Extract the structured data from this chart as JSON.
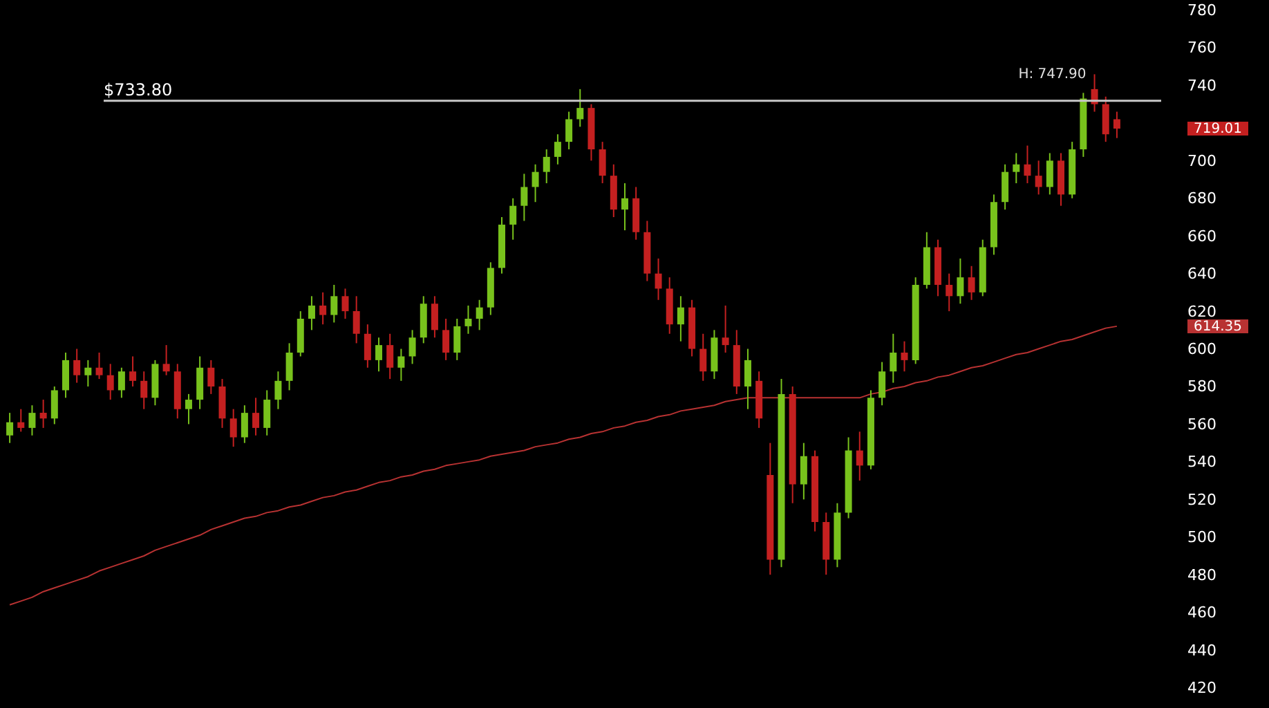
{
  "chart_data": {
    "type": "candlestick",
    "tick_labels": "y",
    "ylim": [
      420,
      780
    ],
    "yticks": [
      420,
      440,
      460,
      480,
      500,
      520,
      540,
      560,
      580,
      600,
      620,
      640,
      660,
      680,
      700,
      740,
      760,
      780
    ],
    "categories": [
      null,
      null,
      null,
      null,
      null,
      null,
      null,
      null,
      null,
      null,
      null,
      null,
      null,
      null,
      null,
      null,
      null,
      null,
      null,
      null,
      null,
      null,
      null,
      null,
      null,
      null,
      null,
      null,
      null,
      null,
      null,
      null,
      null,
      null,
      null,
      null,
      null,
      null,
      null,
      null,
      null,
      null,
      null,
      null,
      null,
      null,
      null,
      null,
      null,
      null,
      null,
      null,
      null,
      null,
      null,
      null,
      null,
      null,
      null,
      null,
      null,
      null,
      null,
      null,
      null,
      null,
      null,
      null,
      null,
      null,
      null,
      null,
      null,
      null,
      null,
      null,
      null,
      null,
      null,
      null,
      null,
      null,
      null,
      null,
      null,
      null,
      null,
      null,
      null,
      null,
      null,
      null,
      null,
      null,
      null,
      null,
      null,
      null,
      null,
      null
    ],
    "series": [
      {
        "type": "line",
        "color": "#b83232",
        "values": [
          466,
          468,
          470,
          473,
          475,
          477,
          479,
          481,
          484,
          486,
          488,
          490,
          492,
          495,
          497,
          499,
          501,
          503,
          506,
          508,
          510,
          512,
          513,
          515,
          516,
          518,
          519,
          521,
          523,
          524,
          526,
          527,
          529,
          531,
          532,
          534,
          535,
          537,
          538,
          540,
          541,
          542,
          543,
          545,
          546,
          547,
          548,
          550,
          551,
          552,
          554,
          555,
          557,
          558,
          560,
          561,
          563,
          564,
          566,
          567,
          569,
          570,
          571,
          572,
          574,
          575,
          576,
          576,
          576,
          576,
          576,
          576,
          576,
          576,
          576,
          576,
          576,
          578,
          579,
          581,
          582,
          584,
          585,
          587,
          588,
          590,
          592,
          593,
          595,
          597,
          599,
          600,
          602,
          604,
          606,
          607,
          609,
          611,
          613,
          614
        ]
      },
      {
        "type": "candlestick",
        "ohlc": [
          [
            556,
            568,
            552,
            563
          ],
          [
            563,
            570,
            558,
            560
          ],
          [
            560,
            572,
            556,
            568
          ],
          [
            568,
            575,
            560,
            565
          ],
          [
            565,
            582,
            562,
            580
          ],
          [
            580,
            600,
            576,
            596
          ],
          [
            596,
            602,
            584,
            588
          ],
          [
            588,
            596,
            582,
            592
          ],
          [
            592,
            600,
            586,
            588
          ],
          [
            588,
            594,
            575,
            580
          ],
          [
            580,
            592,
            576,
            590
          ],
          [
            590,
            598,
            582,
            585
          ],
          [
            585,
            590,
            570,
            576
          ],
          [
            576,
            596,
            572,
            594
          ],
          [
            594,
            604,
            588,
            590
          ],
          [
            590,
            594,
            565,
            570
          ],
          [
            570,
            578,
            562,
            575
          ],
          [
            575,
            598,
            570,
            592
          ],
          [
            592,
            596,
            578,
            582
          ],
          [
            582,
            586,
            560,
            565
          ],
          [
            565,
            570,
            550,
            555
          ],
          [
            555,
            572,
            552,
            568
          ],
          [
            568,
            576,
            556,
            560
          ],
          [
            560,
            580,
            556,
            575
          ],
          [
            575,
            590,
            570,
            585
          ],
          [
            585,
            605,
            580,
            600
          ],
          [
            600,
            622,
            598,
            618
          ],
          [
            618,
            630,
            612,
            625
          ],
          [
            625,
            632,
            615,
            620
          ],
          [
            620,
            636,
            616,
            630
          ],
          [
            630,
            634,
            618,
            622
          ],
          [
            622,
            630,
            605,
            610
          ],
          [
            610,
            615,
            592,
            596
          ],
          [
            596,
            608,
            590,
            604
          ],
          [
            604,
            610,
            586,
            592
          ],
          [
            592,
            602,
            585,
            598
          ],
          [
            598,
            612,
            594,
            608
          ],
          [
            608,
            630,
            605,
            626
          ],
          [
            626,
            630,
            608,
            612
          ],
          [
            612,
            618,
            596,
            600
          ],
          [
            600,
            618,
            596,
            614
          ],
          [
            614,
            625,
            610,
            618
          ],
          [
            618,
            628,
            612,
            624
          ],
          [
            624,
            648,
            620,
            645
          ],
          [
            645,
            672,
            642,
            668
          ],
          [
            668,
            682,
            660,
            678
          ],
          [
            678,
            695,
            670,
            688
          ],
          [
            688,
            700,
            680,
            696
          ],
          [
            696,
            708,
            690,
            704
          ],
          [
            704,
            716,
            700,
            712
          ],
          [
            712,
            728,
            708,
            724
          ],
          [
            724,
            740,
            720,
            730
          ],
          [
            730,
            732,
            702,
            708
          ],
          [
            708,
            712,
            690,
            694
          ],
          [
            694,
            700,
            672,
            676
          ],
          [
            676,
            690,
            665,
            682
          ],
          [
            682,
            688,
            660,
            664
          ],
          [
            664,
            670,
            638,
            642
          ],
          [
            642,
            650,
            628,
            634
          ],
          [
            634,
            640,
            610,
            615
          ],
          [
            615,
            630,
            606,
            624
          ],
          [
            624,
            628,
            598,
            602
          ],
          [
            602,
            610,
            585,
            590
          ],
          [
            590,
            612,
            586,
            608
          ],
          [
            608,
            625,
            600,
            604
          ],
          [
            604,
            612,
            578,
            582
          ],
          [
            582,
            602,
            570,
            596
          ],
          [
            585,
            590,
            560,
            565
          ],
          [
            535,
            552,
            482,
            490
          ],
          [
            490,
            586,
            486,
            578
          ],
          [
            578,
            582,
            520,
            530
          ],
          [
            530,
            552,
            522,
            545
          ],
          [
            545,
            548,
            505,
            510
          ],
          [
            510,
            515,
            482,
            490
          ],
          [
            490,
            520,
            486,
            515
          ],
          [
            515,
            555,
            512,
            548
          ],
          [
            548,
            558,
            532,
            540
          ],
          [
            540,
            580,
            538,
            576
          ],
          [
            576,
            595,
            572,
            590
          ],
          [
            590,
            610,
            584,
            600
          ],
          [
            600,
            606,
            590,
            596
          ],
          [
            596,
            640,
            594,
            636
          ],
          [
            636,
            664,
            634,
            656
          ],
          [
            656,
            660,
            630,
            636
          ],
          [
            636,
            642,
            622,
            630
          ],
          [
            630,
            650,
            626,
            640
          ],
          [
            640,
            646,
            628,
            632
          ],
          [
            632,
            660,
            630,
            656
          ],
          [
            656,
            684,
            652,
            680
          ],
          [
            680,
            700,
            676,
            696
          ],
          [
            696,
            706,
            690,
            700
          ],
          [
            700,
            710,
            690,
            694
          ],
          [
            694,
            702,
            684,
            688
          ],
          [
            688,
            706,
            684,
            702
          ],
          [
            702,
            706,
            678,
            684
          ],
          [
            684,
            712,
            682,
            708
          ],
          [
            708,
            738,
            704,
            735
          ],
          [
            740,
            747.9,
            728,
            732
          ],
          [
            732,
            736,
            712,
            716
          ],
          [
            724,
            728,
            714,
            719.01
          ]
        ],
        "colors": [
          "#78c21c",
          "#c42020",
          "#78c21c",
          "#c42020",
          "#78c21c",
          "#78c21c",
          "#c42020",
          "#78c21c",
          "#c42020",
          "#c42020",
          "#78c21c",
          "#c42020",
          "#c42020",
          "#78c21c",
          "#c42020",
          "#c42020",
          "#78c21c",
          "#78c21c",
          "#c42020",
          "#c42020",
          "#c42020",
          "#78c21c",
          "#c42020",
          "#78c21c",
          "#78c21c",
          "#78c21c",
          "#78c21c",
          "#78c21c",
          "#c42020",
          "#78c21c",
          "#c42020",
          "#c42020",
          "#c42020",
          "#78c21c",
          "#c42020",
          "#78c21c",
          "#78c21c",
          "#78c21c",
          "#c42020",
          "#c42020",
          "#78c21c",
          "#78c21c",
          "#78c21c",
          "#78c21c",
          "#78c21c",
          "#78c21c",
          "#78c21c",
          "#78c21c",
          "#78c21c",
          "#78c21c",
          "#78c21c",
          "#78c21c",
          "#c42020",
          "#c42020",
          "#c42020",
          "#78c21c",
          "#c42020",
          "#c42020",
          "#c42020",
          "#c42020",
          "#78c21c",
          "#c42020",
          "#c42020",
          "#78c21c",
          "#c42020",
          "#c42020",
          "#78c21c",
          "#c42020",
          "#c42020",
          "#78c21c",
          "#c42020",
          "#78c21c",
          "#c42020",
          "#c42020",
          "#78c21c",
          "#78c21c",
          "#c42020",
          "#78c21c",
          "#78c21c",
          "#78c21c",
          "#c42020",
          "#78c21c",
          "#78c21c",
          "#c42020",
          "#c42020",
          "#78c21c",
          "#c42020",
          "#78c21c",
          "#78c21c",
          "#78c21c",
          "#78c21c",
          "#c42020",
          "#c42020",
          "#78c21c",
          "#c42020",
          "#78c21c",
          "#78c21c",
          "#c42020",
          "#c42020",
          "#c42020"
        ]
      }
    ],
    "ref_lines": [
      {
        "axis": "y",
        "value": 733.8,
        "label": "$733.80",
        "color": "#c8c8c8"
      }
    ],
    "annotations": [
      "H: 747.90",
      "719.01",
      "614.35"
    ]
  }
}
